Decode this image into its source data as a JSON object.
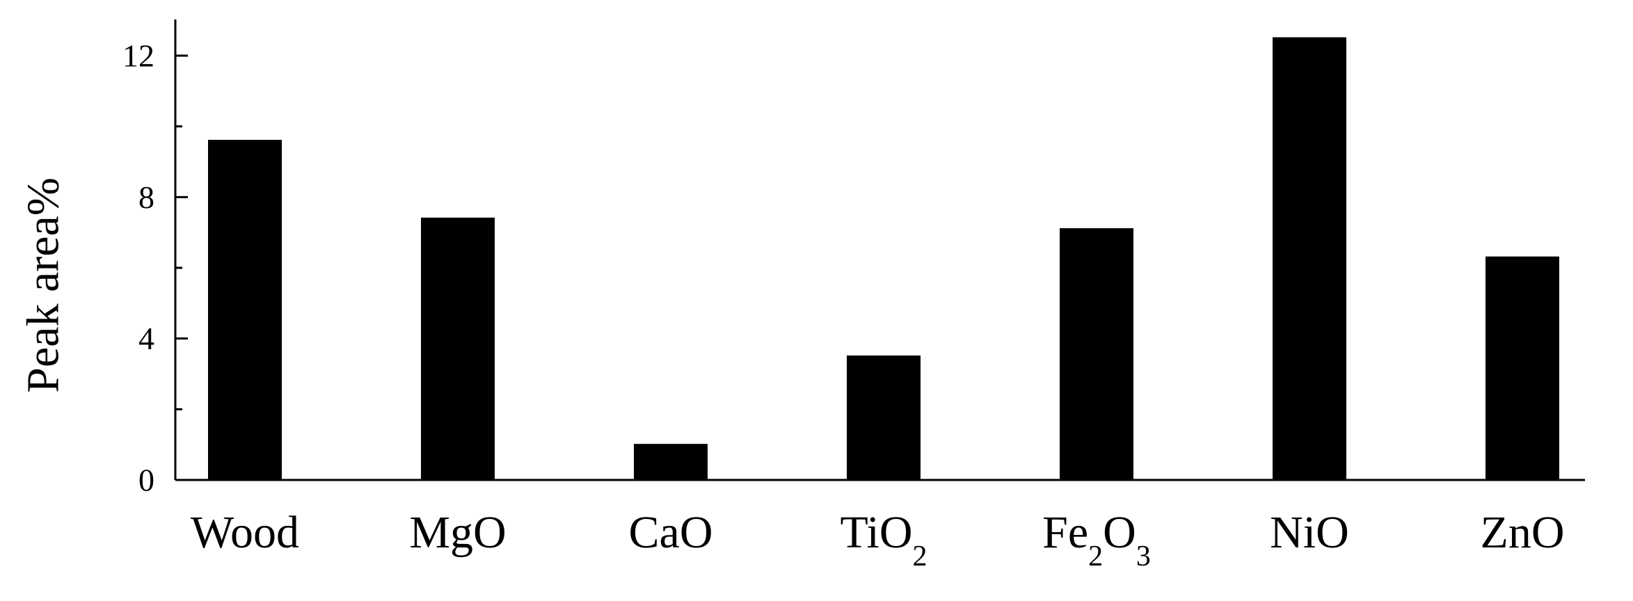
{
  "chart_data": {
    "type": "bar",
    "categories": [
      {
        "base": "Wood",
        "parts": [
          {
            "t": "Wood",
            "sub": false
          }
        ]
      },
      {
        "base": "MgO",
        "parts": [
          {
            "t": "MgO",
            "sub": false
          }
        ]
      },
      {
        "base": "CaO",
        "parts": [
          {
            "t": "CaO",
            "sub": false
          }
        ]
      },
      {
        "base": "TiO2",
        "parts": [
          {
            "t": "TiO",
            "sub": false
          },
          {
            "t": "2",
            "sub": true
          }
        ]
      },
      {
        "base": "Fe2O3",
        "parts": [
          {
            "t": "Fe",
            "sub": false
          },
          {
            "t": "2",
            "sub": true
          },
          {
            "t": "O",
            "sub": false
          },
          {
            "t": "3",
            "sub": true
          }
        ]
      },
      {
        "base": "NiO",
        "parts": [
          {
            "t": "NiO",
            "sub": false
          }
        ]
      },
      {
        "base": "ZnO",
        "parts": [
          {
            "t": "ZnO",
            "sub": false
          }
        ]
      }
    ],
    "values": [
      9.6,
      7.4,
      1.0,
      3.5,
      7.1,
      12.5,
      6.3
    ],
    "title": "",
    "xlabel": "",
    "ylabel": "Peak area%",
    "ylim": [
      0,
      13
    ],
    "yticks": [
      0,
      4,
      8,
      12
    ],
    "yticks_minor": [
      2,
      6,
      10
    ],
    "ytick_labels": [
      "0",
      "4",
      "8",
      "12"
    ],
    "grid": false,
    "legend": "none",
    "bar_color": "#000000"
  }
}
